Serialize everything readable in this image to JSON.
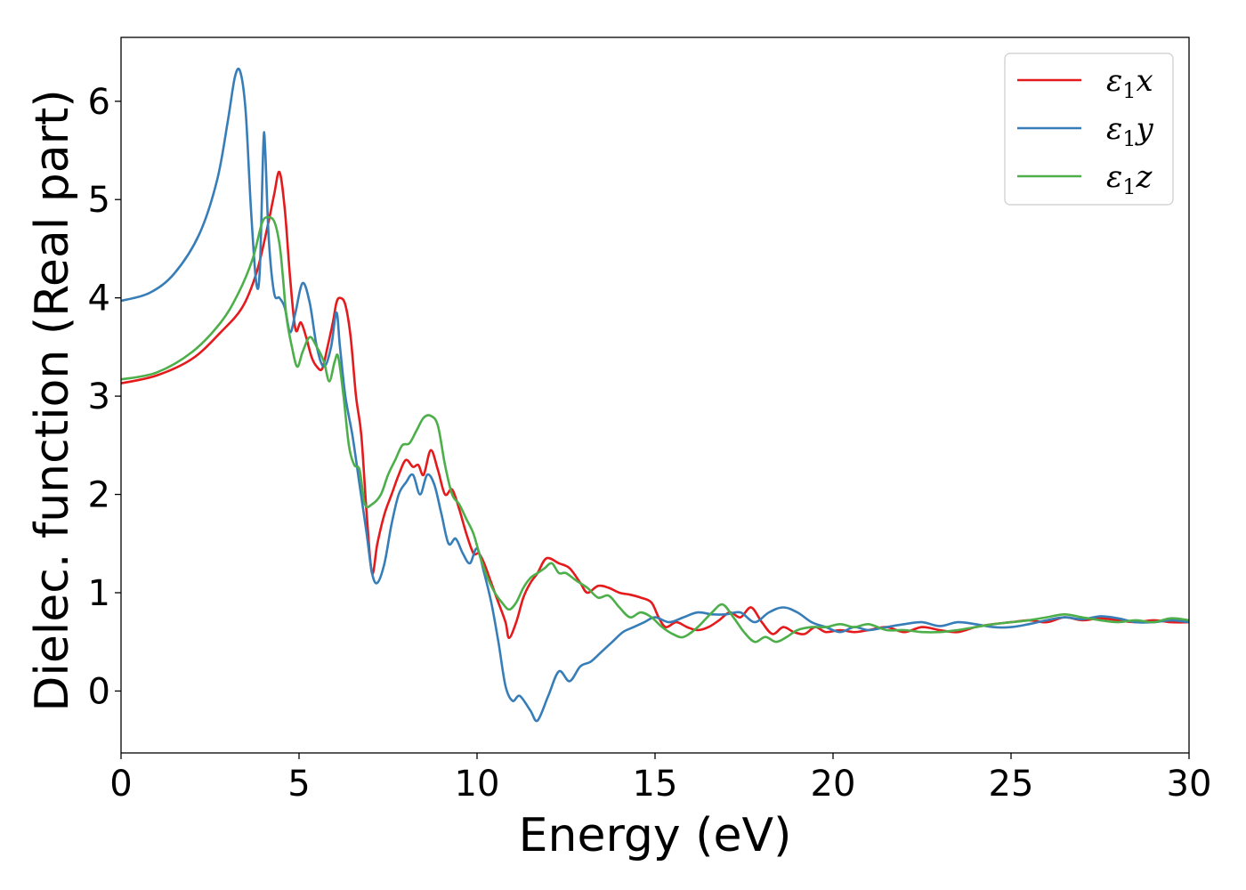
{
  "chart_data": {
    "type": "line",
    "title": "",
    "xlabel": "Energy (eV)",
    "ylabel": "Dielec. function (Real part)",
    "xlim": [
      0,
      30
    ],
    "ylim": [
      -0.63,
      6.65
    ],
    "xticks": [
      0,
      5,
      10,
      15,
      20,
      25,
      30
    ],
    "yticks": [
      0,
      1,
      2,
      3,
      4,
      5,
      6
    ],
    "grid": false,
    "legend_position": "top-right",
    "series": [
      {
        "name": "ε1x",
        "base": "ε",
        "sub": "1",
        "var": "x",
        "color": "#e41a1c",
        "points": [
          [
            0,
            3.13
          ],
          [
            1,
            3.21
          ],
          [
            2,
            3.38
          ],
          [
            2.8,
            3.65
          ],
          [
            3.4,
            3.9
          ],
          [
            3.8,
            4.25
          ],
          [
            4.1,
            4.7
          ],
          [
            4.3,
            5.05
          ],
          [
            4.45,
            5.28
          ],
          [
            4.6,
            4.9
          ],
          [
            4.75,
            4.2
          ],
          [
            4.9,
            3.68
          ],
          [
            5.05,
            3.75
          ],
          [
            5.2,
            3.6
          ],
          [
            5.35,
            3.4
          ],
          [
            5.5,
            3.3
          ],
          [
            5.65,
            3.28
          ],
          [
            5.8,
            3.5
          ],
          [
            5.95,
            3.75
          ],
          [
            6.05,
            3.95
          ],
          [
            6.15,
            4.0
          ],
          [
            6.3,
            3.93
          ],
          [
            6.45,
            3.6
          ],
          [
            6.6,
            3.0
          ],
          [
            6.75,
            2.6
          ],
          [
            6.9,
            1.8
          ],
          [
            7.05,
            1.2
          ],
          [
            7.2,
            1.5
          ],
          [
            7.4,
            1.8
          ],
          [
            7.6,
            2.0
          ],
          [
            7.8,
            2.2
          ],
          [
            8.0,
            2.35
          ],
          [
            8.2,
            2.28
          ],
          [
            8.35,
            2.3
          ],
          [
            8.5,
            2.2
          ],
          [
            8.7,
            2.45
          ],
          [
            8.9,
            2.25
          ],
          [
            9.1,
            2.0
          ],
          [
            9.3,
            2.05
          ],
          [
            9.5,
            1.85
          ],
          [
            9.7,
            1.6
          ],
          [
            9.9,
            1.4
          ],
          [
            10.05,
            1.4
          ],
          [
            10.2,
            1.3
          ],
          [
            10.4,
            1.1
          ],
          [
            10.6,
            0.9
          ],
          [
            10.8,
            0.7
          ],
          [
            10.9,
            0.54
          ],
          [
            11.1,
            0.7
          ],
          [
            11.3,
            0.95
          ],
          [
            11.5,
            1.1
          ],
          [
            11.7,
            1.2
          ],
          [
            11.95,
            1.35
          ],
          [
            12.3,
            1.3
          ],
          [
            12.6,
            1.25
          ],
          [
            12.9,
            1.1
          ],
          [
            13.1,
            1.0
          ],
          [
            13.4,
            1.07
          ],
          [
            13.7,
            1.05
          ],
          [
            14.0,
            1.0
          ],
          [
            14.3,
            0.98
          ],
          [
            14.6,
            0.95
          ],
          [
            14.9,
            0.9
          ],
          [
            15.1,
            0.75
          ],
          [
            15.3,
            0.65
          ],
          [
            15.6,
            0.7
          ],
          [
            15.9,
            0.65
          ],
          [
            16.2,
            0.62
          ],
          [
            16.5,
            0.65
          ],
          [
            16.8,
            0.72
          ],
          [
            17.1,
            0.8
          ],
          [
            17.4,
            0.75
          ],
          [
            17.7,
            0.85
          ],
          [
            18.0,
            0.7
          ],
          [
            18.3,
            0.58
          ],
          [
            18.6,
            0.65
          ],
          [
            18.9,
            0.6
          ],
          [
            19.2,
            0.58
          ],
          [
            19.5,
            0.65
          ],
          [
            19.8,
            0.6
          ],
          [
            20.2,
            0.62
          ],
          [
            20.6,
            0.6
          ],
          [
            21.0,
            0.62
          ],
          [
            21.5,
            0.65
          ],
          [
            22,
            0.6
          ],
          [
            22.5,
            0.65
          ],
          [
            23,
            0.62
          ],
          [
            23.5,
            0.6
          ],
          [
            24,
            0.65
          ],
          [
            24.5,
            0.68
          ],
          [
            25,
            0.7
          ],
          [
            25.5,
            0.72
          ],
          [
            26,
            0.7
          ],
          [
            26.5,
            0.75
          ],
          [
            27,
            0.72
          ],
          [
            27.5,
            0.74
          ],
          [
            28,
            0.72
          ],
          [
            28.5,
            0.7
          ],
          [
            29,
            0.72
          ],
          [
            29.5,
            0.7
          ],
          [
            30,
            0.7
          ]
        ]
      },
      {
        "name": "ε1y",
        "base": "ε",
        "sub": "1",
        "var": "y",
        "color": "#377eb8",
        "points": [
          [
            0,
            3.97
          ],
          [
            0.8,
            4.05
          ],
          [
            1.5,
            4.25
          ],
          [
            2.2,
            4.65
          ],
          [
            2.7,
            5.2
          ],
          [
            3.0,
            5.8
          ],
          [
            3.2,
            6.25
          ],
          [
            3.35,
            6.3
          ],
          [
            3.5,
            5.9
          ],
          [
            3.65,
            4.9
          ],
          [
            3.8,
            4.15
          ],
          [
            3.9,
            4.3
          ],
          [
            4.0,
            5.58
          ],
          [
            4.05,
            5.5
          ],
          [
            4.15,
            4.6
          ],
          [
            4.3,
            4.05
          ],
          [
            4.45,
            4.0
          ],
          [
            4.6,
            3.9
          ],
          [
            4.75,
            3.65
          ],
          [
            4.9,
            3.85
          ],
          [
            5.1,
            4.15
          ],
          [
            5.3,
            3.95
          ],
          [
            5.5,
            3.5
          ],
          [
            5.7,
            3.3
          ],
          [
            5.9,
            3.5
          ],
          [
            6.05,
            3.85
          ],
          [
            6.15,
            3.5
          ],
          [
            6.3,
            3.0
          ],
          [
            6.5,
            2.6
          ],
          [
            6.7,
            2.1
          ],
          [
            6.9,
            1.6
          ],
          [
            7.05,
            1.2
          ],
          [
            7.2,
            1.1
          ],
          [
            7.4,
            1.3
          ],
          [
            7.6,
            1.7
          ],
          [
            7.8,
            2.0
          ],
          [
            8.0,
            2.12
          ],
          [
            8.2,
            2.2
          ],
          [
            8.4,
            2.0
          ],
          [
            8.6,
            2.2
          ],
          [
            8.8,
            2.1
          ],
          [
            9.0,
            1.8
          ],
          [
            9.2,
            1.5
          ],
          [
            9.4,
            1.55
          ],
          [
            9.6,
            1.4
          ],
          [
            9.8,
            1.3
          ],
          [
            10.0,
            1.45
          ],
          [
            10.2,
            1.2
          ],
          [
            10.4,
            0.9
          ],
          [
            10.6,
            0.5
          ],
          [
            10.8,
            0.05
          ],
          [
            11.0,
            -0.1
          ],
          [
            11.2,
            -0.05
          ],
          [
            11.5,
            -0.2
          ],
          [
            11.7,
            -0.3
          ],
          [
            12.0,
            -0.05
          ],
          [
            12.3,
            0.2
          ],
          [
            12.6,
            0.1
          ],
          [
            12.9,
            0.25
          ],
          [
            13.2,
            0.3
          ],
          [
            13.5,
            0.4
          ],
          [
            13.8,
            0.5
          ],
          [
            14.1,
            0.6
          ],
          [
            14.4,
            0.65
          ],
          [
            14.7,
            0.7
          ],
          [
            15.0,
            0.75
          ],
          [
            15.4,
            0.7
          ],
          [
            15.8,
            0.75
          ],
          [
            16.2,
            0.8
          ],
          [
            16.6,
            0.78
          ],
          [
            17.0,
            0.78
          ],
          [
            17.4,
            0.8
          ],
          [
            17.8,
            0.7
          ],
          [
            18.2,
            0.8
          ],
          [
            18.6,
            0.85
          ],
          [
            19.0,
            0.8
          ],
          [
            19.4,
            0.7
          ],
          [
            19.8,
            0.65
          ],
          [
            20.2,
            0.6
          ],
          [
            20.6,
            0.65
          ],
          [
            21.0,
            0.62
          ],
          [
            21.5,
            0.65
          ],
          [
            22,
            0.68
          ],
          [
            22.5,
            0.7
          ],
          [
            23,
            0.66
          ],
          [
            23.5,
            0.7
          ],
          [
            24,
            0.68
          ],
          [
            24.5,
            0.65
          ],
          [
            25,
            0.65
          ],
          [
            25.5,
            0.68
          ],
          [
            26,
            0.72
          ],
          [
            26.5,
            0.75
          ],
          [
            27,
            0.73
          ],
          [
            27.5,
            0.76
          ],
          [
            28,
            0.74
          ],
          [
            28.5,
            0.7
          ],
          [
            29,
            0.7
          ],
          [
            29.5,
            0.72
          ],
          [
            30,
            0.7
          ]
        ]
      },
      {
        "name": "ε1z",
        "base": "ε",
        "sub": "1",
        "var": "z",
        "color": "#4daf4a",
        "points": [
          [
            0,
            3.17
          ],
          [
            1,
            3.24
          ],
          [
            2,
            3.45
          ],
          [
            2.8,
            3.75
          ],
          [
            3.3,
            4.05
          ],
          [
            3.7,
            4.4
          ],
          [
            3.95,
            4.75
          ],
          [
            4.1,
            4.82
          ],
          [
            4.3,
            4.78
          ],
          [
            4.45,
            4.55
          ],
          [
            4.55,
            4.2
          ],
          [
            4.65,
            3.8
          ],
          [
            4.8,
            3.5
          ],
          [
            4.95,
            3.3
          ],
          [
            5.1,
            3.45
          ],
          [
            5.3,
            3.6
          ],
          [
            5.5,
            3.5
          ],
          [
            5.7,
            3.35
          ],
          [
            5.85,
            3.15
          ],
          [
            6.0,
            3.35
          ],
          [
            6.1,
            3.4
          ],
          [
            6.25,
            3.0
          ],
          [
            6.4,
            2.5
          ],
          [
            6.55,
            2.3
          ],
          [
            6.7,
            2.25
          ],
          [
            6.85,
            1.9
          ],
          [
            7.05,
            1.9
          ],
          [
            7.3,
            2.0
          ],
          [
            7.5,
            2.2
          ],
          [
            7.7,
            2.35
          ],
          [
            7.9,
            2.5
          ],
          [
            8.1,
            2.52
          ],
          [
            8.3,
            2.65
          ],
          [
            8.5,
            2.78
          ],
          [
            8.7,
            2.8
          ],
          [
            8.9,
            2.7
          ],
          [
            9.1,
            2.3
          ],
          [
            9.3,
            2.0
          ],
          [
            9.5,
            1.9
          ],
          [
            9.7,
            1.75
          ],
          [
            9.9,
            1.6
          ],
          [
            10.1,
            1.35
          ],
          [
            10.3,
            1.15
          ],
          [
            10.5,
            1.0
          ],
          [
            10.7,
            0.9
          ],
          [
            10.9,
            0.83
          ],
          [
            11.1,
            0.9
          ],
          [
            11.3,
            1.05
          ],
          [
            11.5,
            1.15
          ],
          [
            11.7,
            1.2
          ],
          [
            11.9,
            1.25
          ],
          [
            12.1,
            1.3
          ],
          [
            12.3,
            1.2
          ],
          [
            12.5,
            1.2
          ],
          [
            12.8,
            1.12
          ],
          [
            13.1,
            1.05
          ],
          [
            13.4,
            0.95
          ],
          [
            13.7,
            0.97
          ],
          [
            14.0,
            0.85
          ],
          [
            14.3,
            0.75
          ],
          [
            14.6,
            0.8
          ],
          [
            14.9,
            0.75
          ],
          [
            15.2,
            0.65
          ],
          [
            15.5,
            0.58
          ],
          [
            15.8,
            0.55
          ],
          [
            16.2,
            0.65
          ],
          [
            16.6,
            0.8
          ],
          [
            16.9,
            0.88
          ],
          [
            17.2,
            0.75
          ],
          [
            17.5,
            0.6
          ],
          [
            17.8,
            0.5
          ],
          [
            18.1,
            0.55
          ],
          [
            18.4,
            0.5
          ],
          [
            18.7,
            0.55
          ],
          [
            19.0,
            0.62
          ],
          [
            19.4,
            0.65
          ],
          [
            19.8,
            0.65
          ],
          [
            20.2,
            0.68
          ],
          [
            20.6,
            0.65
          ],
          [
            21.0,
            0.68
          ],
          [
            21.5,
            0.62
          ],
          [
            22,
            0.62
          ],
          [
            22.5,
            0.6
          ],
          [
            23,
            0.6
          ],
          [
            23.5,
            0.62
          ],
          [
            24,
            0.65
          ],
          [
            24.5,
            0.68
          ],
          [
            25,
            0.7
          ],
          [
            25.5,
            0.72
          ],
          [
            26,
            0.75
          ],
          [
            26.5,
            0.78
          ],
          [
            27,
            0.75
          ],
          [
            27.5,
            0.72
          ],
          [
            28,
            0.7
          ],
          [
            28.5,
            0.72
          ],
          [
            29,
            0.7
          ],
          [
            29.5,
            0.74
          ],
          [
            30,
            0.72
          ]
        ]
      }
    ]
  }
}
